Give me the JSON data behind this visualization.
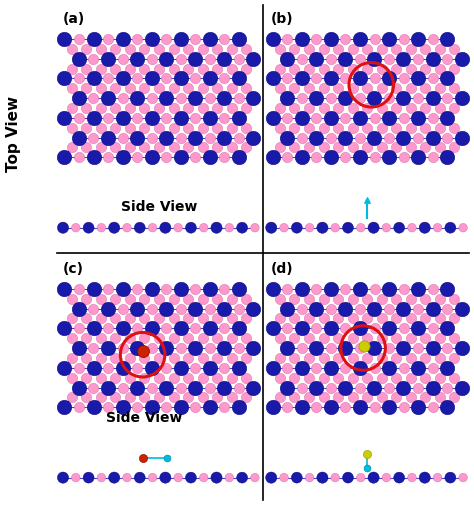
{
  "fig_width": 4.74,
  "fig_height": 5.05,
  "dpi": 100,
  "bg_color": "#ffffff",
  "dark_blue": "#1a1aaa",
  "pink": "#ff99cc",
  "red_circle_color": "#dd1111",
  "cyan_color": "#00bbdd",
  "yellow_color": "#cccc00",
  "red_atom_color": "#cc2200",
  "panel_labels": [
    "(a)",
    "(b)",
    "(c)",
    "(d)"
  ],
  "top_view_label": "Top View",
  "side_view_label": "Side View",
  "label_fontsize": 11,
  "panel_label_fontsize": 10
}
